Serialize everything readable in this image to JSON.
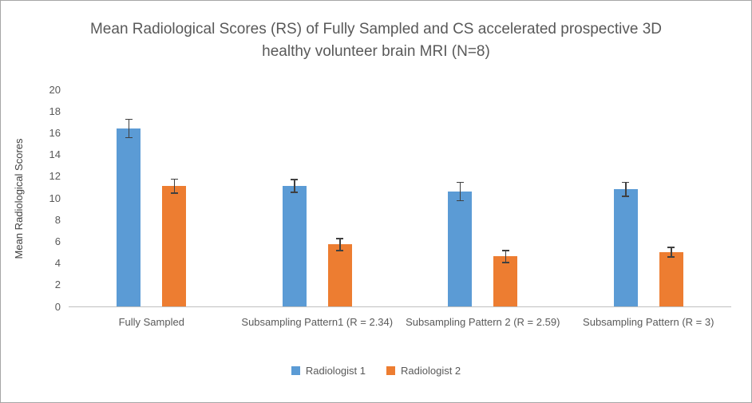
{
  "chart_data": {
    "type": "bar",
    "title": "Mean Radiological Scores (RS) of Fully Sampled and CS accelerated prospective 3D healthy volunteer brain MRI (N=8)",
    "xlabel": "",
    "ylabel": "Mean Radiological Scores",
    "ylim": [
      0,
      20
    ],
    "ytick_step": 2,
    "grid": "off",
    "legend_position": "bottom",
    "error_bars": true,
    "error_bar_color": "#404040",
    "axis_line_color": "#bfbfbf",
    "categories": [
      "Fully Sampled",
      "Subsampling Pattern1 (R = 2.34)",
      "Subsampling Pattern 2 (R = 2.59)",
      "Subsampling Pattern (R = 3)"
    ],
    "series": [
      {
        "name": "Radiologist 1",
        "color": "#5b9bd5",
        "values": [
          16.4,
          11.1,
          10.6,
          10.8
        ],
        "errors": [
          0.9,
          0.65,
          0.9,
          0.7
        ]
      },
      {
        "name": "Radiologist 2",
        "color": "#ed7d31",
        "values": [
          11.1,
          5.7,
          4.6,
          5.0
        ],
        "errors": [
          0.7,
          0.6,
          0.6,
          0.5
        ]
      }
    ]
  }
}
